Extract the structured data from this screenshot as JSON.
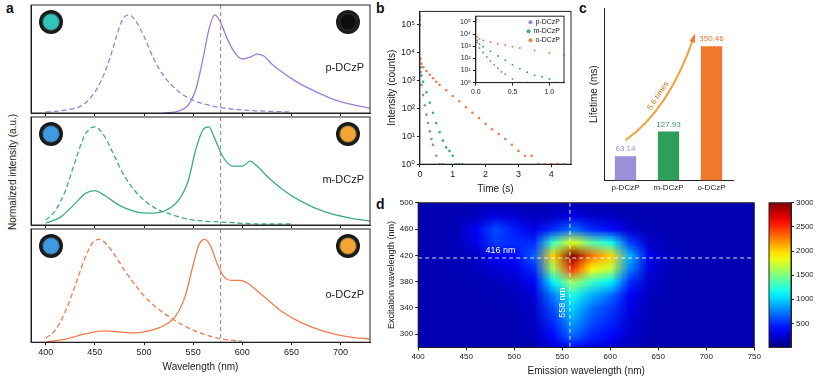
{
  "chart_data": [
    {
      "panel": "a",
      "type": "line",
      "xlim": [
        385,
        730
      ],
      "xticks": [
        400,
        450,
        500,
        550,
        600,
        650,
        700
      ],
      "ylim": [
        0,
        1.1
      ],
      "yticks": [],
      "tick_labels": false,
      "vlines": [
        578
      ],
      "annotations": [
        {
          "text": "p-DCzP"
        }
      ],
      "series": [
        {
          "color": "#9b7fd4",
          "line_style": "dashed",
          "x": [
            400,
            420,
            440,
            455,
            465,
            472,
            478,
            485,
            492,
            500,
            510,
            520,
            535,
            550,
            570,
            590,
            620,
            650
          ],
          "values": [
            0.01,
            0.03,
            0.1,
            0.3,
            0.55,
            0.78,
            0.95,
            1.0,
            0.93,
            0.78,
            0.55,
            0.38,
            0.22,
            0.13,
            0.07,
            0.04,
            0.02,
            0.01
          ]
        },
        {
          "color": "#9b7fd4",
          "line_style": "solid",
          "x": [
            520,
            535,
            545,
            553,
            560,
            566,
            572,
            578,
            585,
            592,
            600,
            608,
            615,
            622,
            630,
            640,
            655,
            670,
            690,
            710,
            730
          ],
          "values": [
            0.0,
            0.02,
            0.08,
            0.25,
            0.55,
            0.85,
            1.0,
            0.92,
            0.75,
            0.62,
            0.55,
            0.57,
            0.6,
            0.58,
            0.5,
            0.42,
            0.32,
            0.24,
            0.15,
            0.09,
            0.05
          ]
        }
      ]
    },
    {
      "type": "line",
      "y_label": "Normalized intensity (a.u.)",
      "xlim": [
        385,
        730
      ],
      "xticks": [
        400,
        450,
        500,
        550,
        600,
        650,
        700
      ],
      "ylim": [
        0,
        1.1
      ],
      "yticks": [],
      "tick_labels": false,
      "vlines": [
        578
      ],
      "annotations": [
        {
          "text": "m-DCzP"
        }
      ],
      "series": [
        {
          "color": "#3dab82",
          "line_style": "dashed",
          "x": [
            400,
            410,
            420,
            430,
            440,
            450,
            460,
            470,
            480,
            495,
            510,
            530,
            550,
            580,
            620,
            650
          ],
          "values": [
            0.05,
            0.15,
            0.35,
            0.65,
            0.92,
            1.0,
            0.9,
            0.7,
            0.5,
            0.3,
            0.18,
            0.1,
            0.05,
            0.03,
            0.01,
            0.01
          ]
        },
        {
          "color": "#3dab82",
          "line_style": "solid",
          "x": [
            400,
            415,
            430,
            440,
            450,
            460,
            475,
            490,
            505,
            520,
            535,
            545,
            553,
            560,
            566,
            572,
            580,
            590,
            600,
            608,
            615,
            625,
            640,
            660,
            685,
            710,
            730
          ],
          "values": [
            0.02,
            0.08,
            0.22,
            0.32,
            0.35,
            0.3,
            0.2,
            0.14,
            0.12,
            0.14,
            0.25,
            0.45,
            0.78,
            0.97,
            1.0,
            0.88,
            0.7,
            0.6,
            0.6,
            0.65,
            0.6,
            0.5,
            0.37,
            0.24,
            0.13,
            0.07,
            0.04
          ]
        }
      ]
    },
    {
      "type": "line",
      "x_label": "Wavelength (nm)",
      "xlim": [
        385,
        730
      ],
      "xticks": [
        400,
        450,
        500,
        550,
        600,
        650,
        700
      ],
      "ylim": [
        0,
        1.1
      ],
      "yticks": [],
      "tick_labels": "x",
      "vlines": [
        578
      ],
      "annotations": [
        {
          "text": "o-DCzP"
        }
      ],
      "series": [
        {
          "color": "#f07b4d",
          "line_style": "dashed",
          "x": [
            400,
            410,
            420,
            430,
            440,
            448,
            455,
            462,
            470,
            480,
            490,
            500,
            515,
            530,
            545,
            560,
            580,
            600
          ],
          "values": [
            0.04,
            0.12,
            0.3,
            0.55,
            0.82,
            0.97,
            1.0,
            0.95,
            0.85,
            0.7,
            0.57,
            0.45,
            0.32,
            0.22,
            0.14,
            0.08,
            0.03,
            0.01
          ]
        },
        {
          "color": "#f07b4d",
          "line_style": "solid",
          "x": [
            400,
            420,
            440,
            460,
            475,
            490,
            505,
            520,
            532,
            542,
            550,
            556,
            562,
            568,
            575,
            582,
            590,
            598,
            606,
            615,
            625,
            640,
            660,
            685,
            710,
            730
          ],
          "values": [
            0.0,
            0.03,
            0.08,
            0.11,
            0.1,
            0.09,
            0.11,
            0.16,
            0.25,
            0.45,
            0.75,
            0.95,
            1.0,
            0.93,
            0.75,
            0.63,
            0.6,
            0.6,
            0.57,
            0.5,
            0.42,
            0.3,
            0.19,
            0.1,
            0.05,
            0.03
          ]
        }
      ]
    },
    {
      "panel": "b",
      "type": "scatter",
      "log": "y",
      "marker": "circle",
      "x_label": "Time (s)",
      "y_label": "Intensity (counts)",
      "xlim": [
        0,
        4.6
      ],
      "xticks": [
        0,
        1,
        2,
        3,
        4
      ],
      "ylim": [
        1,
        300000
      ],
      "yticks": [
        {
          "value": 1,
          "label": "10⁰"
        },
        {
          "value": 10,
          "label": "10¹"
        },
        {
          "value": 100,
          "label": "10²"
        },
        {
          "value": 1000,
          "label": "10³"
        },
        {
          "value": 10000,
          "label": "10⁴"
        },
        {
          "value": 100000,
          "label": "10⁵"
        }
      ],
      "series": [
        {
          "color": "#f07b4d",
          "x": [
            0,
            0.02,
            0.05,
            0.1,
            0.2,
            0.3,
            0.4,
            0.5,
            0.6,
            0.8,
            1.0,
            1.2,
            1.4,
            1.6,
            1.8,
            2.0,
            2.2,
            2.4,
            2.6,
            2.8,
            3.0,
            3.2,
            3.4,
            3.6,
            3.8,
            4.0,
            4.2,
            4.4
          ],
          "values": [
            200000,
            6000,
            4000,
            3000,
            2200,
            1600,
            1200,
            900,
            700,
            450,
            280,
            180,
            110,
            70,
            45,
            28,
            18,
            12,
            8,
            5,
            3,
            2,
            2,
            1,
            1,
            1,
            1,
            1
          ]
        },
        {
          "color": "#3dab82",
          "x": [
            0,
            0.02,
            0.05,
            0.1,
            0.2,
            0.3,
            0.4,
            0.5,
            0.6,
            0.7,
            0.8,
            0.9,
            1.0,
            1.1,
            1.2,
            1.3
          ],
          "values": [
            150000,
            3000,
            1500,
            900,
            380,
            160,
            70,
            30,
            14,
            7,
            4,
            3,
            2,
            1,
            1,
            1
          ]
        },
        {
          "color": "#9b7fd4",
          "x": [
            0,
            0.02,
            0.05,
            0.1,
            0.15,
            0.2,
            0.25,
            0.3,
            0.35,
            0.4,
            0.5,
            0.6,
            0.7
          ],
          "values": [
            100000,
            2000,
            700,
            300,
            130,
            60,
            30,
            15,
            8,
            5,
            2,
            1,
            1
          ]
        }
      ]
    },
    {
      "type": "scatter",
      "log": "y",
      "marker": "circle",
      "legend": "upper right",
      "xlim": [
        0,
        1.2
      ],
      "xticks": [
        {
          "value": 0,
          "label": "0.0"
        },
        0.5,
        {
          "value": 1,
          "label": "1.0"
        }
      ],
      "ylim": [
        1,
        300000
      ],
      "yticks": [
        {
          "value": 1,
          "label": "10⁰"
        },
        {
          "value": 10,
          "label": "10¹"
        },
        {
          "value": 100,
          "label": "10²"
        },
        {
          "value": 1000,
          "label": "10³"
        },
        {
          "value": 10000,
          "label": "10⁴"
        },
        {
          "value": 100000,
          "label": "10⁵"
        }
      ],
      "series": [
        {
          "name": "p-DCzP",
          "color": "#9b7fd4",
          "x": [
            0,
            0.02,
            0.05,
            0.1,
            0.15,
            0.2,
            0.25,
            0.3,
            0.35,
            0.4,
            0.5,
            0.6,
            0.7
          ],
          "values": [
            100000,
            2000,
            700,
            300,
            130,
            60,
            30,
            15,
            8,
            5,
            2,
            1,
            1
          ]
        },
        {
          "name": "m-DCzP",
          "color": "#3dab82",
          "x": [
            0,
            0.02,
            0.05,
            0.1,
            0.2,
            0.3,
            0.4,
            0.5,
            0.6,
            0.7,
            0.8,
            0.9,
            1.0,
            1.1,
            1.2
          ],
          "values": [
            150000,
            3000,
            1500,
            900,
            380,
            160,
            70,
            30,
            14,
            7,
            4,
            3,
            2,
            1,
            1
          ]
        },
        {
          "name": "o-DCzP",
          "color": "#f07b4d",
          "x": [
            0,
            0.02,
            0.05,
            0.1,
            0.2,
            0.3,
            0.4,
            0.5,
            0.6,
            0.8,
            1.0,
            1.2
          ],
          "values": [
            200000,
            6000,
            4000,
            3000,
            2200,
            1600,
            1200,
            900,
            700,
            450,
            280,
            180
          ]
        }
      ]
    },
    {
      "panel": "c",
      "type": "bar",
      "y_label": "Lifetime (ms)",
      "categories": [
        "p-DCzP",
        "m-DCzP",
        "o-DCzP"
      ],
      "values": [
        63.14,
        127.93,
        350.46
      ],
      "colors": [
        "#9c8fd9",
        "#2f9e5a",
        "#f0782e"
      ],
      "ylim": [
        0,
        450
      ],
      "yticks": [],
      "tick_labels": "x",
      "data_labels": true,
      "annotations": [
        {
          "text": "5.6 times"
        }
      ]
    },
    {
      "panel": "d",
      "type": "heatmap",
      "x_label": "Emission wavelength (nm)",
      "y_label": "Excitation wavelength (nm)",
      "xlim": [
        400,
        750
      ],
      "xticks": [
        400,
        450,
        500,
        550,
        600,
        650,
        700,
        750
      ],
      "ylim": [
        280,
        500
      ],
      "yticks": [
        300,
        340,
        380,
        420,
        460,
        500
      ],
      "x": [
        400,
        420,
        440,
        460,
        480,
        500,
        520,
        540,
        560,
        580,
        600,
        620,
        640,
        660,
        680,
        700,
        720,
        740
      ],
      "y": [
        280,
        300,
        320,
        340,
        360,
        380,
        400,
        420,
        440,
        460,
        480,
        500
      ],
      "values": [
        [
          150,
          150,
          150,
          150,
          150,
          150,
          150,
          250,
          400,
          300,
          250,
          180,
          150,
          150,
          150,
          150,
          150,
          150
        ],
        [
          150,
          150,
          150,
          150,
          150,
          150,
          180,
          400,
          700,
          500,
          400,
          220,
          150,
          150,
          150,
          150,
          150,
          150
        ],
        [
          150,
          150,
          150,
          150,
          150,
          150,
          200,
          500,
          850,
          600,
          480,
          250,
          160,
          150,
          150,
          150,
          150,
          150
        ],
        [
          150,
          150,
          150,
          150,
          150,
          160,
          220,
          600,
          1000,
          700,
          550,
          300,
          170,
          150,
          150,
          150,
          150,
          150
        ],
        [
          150,
          150,
          150,
          150,
          160,
          180,
          260,
          750,
          1200,
          900,
          700,
          350,
          180,
          150,
          150,
          150,
          150,
          150
        ],
        [
          150,
          150,
          150,
          160,
          180,
          220,
          350,
          1100,
          1600,
          1300,
          1100,
          500,
          220,
          160,
          150,
          150,
          150,
          150
        ],
        [
          150,
          150,
          160,
          180,
          250,
          300,
          500,
          1600,
          2500,
          1900,
          1700,
          750,
          280,
          170,
          150,
          150,
          150,
          150
        ],
        [
          150,
          150,
          170,
          200,
          350,
          400,
          650,
          2000,
          3000,
          2300,
          2000,
          900,
          320,
          180,
          150,
          150,
          150,
          150
        ],
        [
          150,
          150,
          170,
          300,
          550,
          500,
          500,
          1300,
          1800,
          1400,
          1200,
          550,
          230,
          160,
          150,
          150,
          150,
          150
        ],
        [
          150,
          150,
          160,
          350,
          600,
          450,
          300,
          500,
          700,
          500,
          400,
          220,
          160,
          150,
          150,
          150,
          150,
          150
        ],
        [
          150,
          150,
          150,
          200,
          300,
          250,
          180,
          220,
          300,
          220,
          200,
          160,
          150,
          150,
          150,
          150,
          150,
          150
        ],
        [
          150,
          150,
          150,
          150,
          150,
          150,
          150,
          150,
          150,
          150,
          150,
          150,
          150,
          150,
          150,
          150,
          150,
          150
        ]
      ],
      "colorbar": {
        "range": [
          0,
          3000
        ],
        "ticks": [
          500,
          1000,
          1500,
          2000,
          2500,
          3000
        ]
      },
      "annotations": [
        {
          "text": "416 nm",
          "y": 416
        },
        {
          "text": "558 nm",
          "x": 558
        }
      ]
    }
  ]
}
